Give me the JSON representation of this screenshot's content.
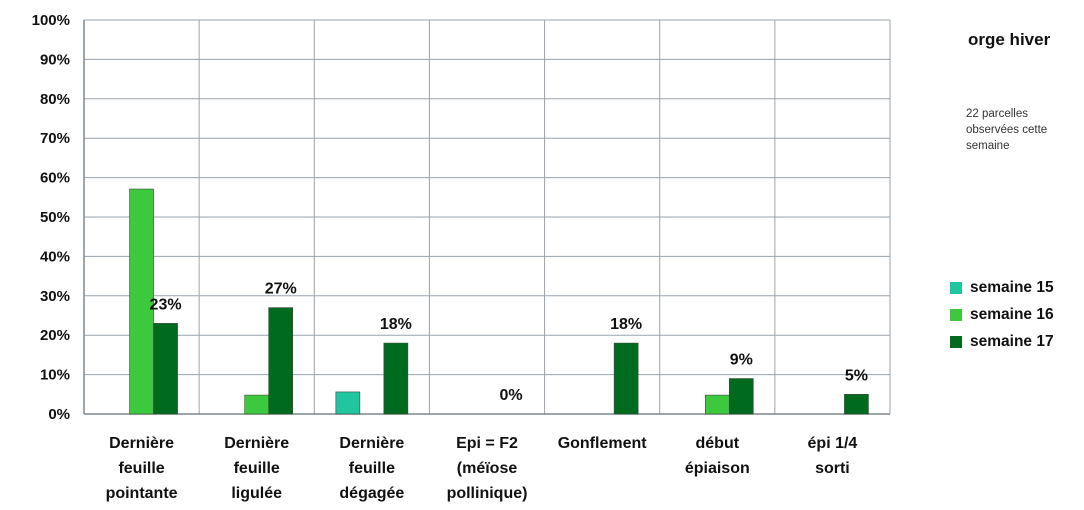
{
  "chart_data": {
    "type": "bar",
    "title": "orge hiver",
    "subtitle": "22 parcelles observées cette semaine",
    "categories": [
      [
        "Dernière",
        "feuille",
        "pointante"
      ],
      [
        "Dernière",
        "feuille",
        "ligulée"
      ],
      [
        "Dernière",
        "feuille",
        "dégagée"
      ],
      [
        "Epi = F2",
        "(méïose",
        "pollinique)"
      ],
      [
        "Gonflement"
      ],
      [
        "début",
        "épiaison"
      ],
      [
        "épi 1/4",
        "sorti"
      ]
    ],
    "series": [
      {
        "name": "semaine 15",
        "color": "#1fc6a0",
        "values": [
          0,
          0,
          5.6,
          0,
          0,
          0,
          0
        ]
      },
      {
        "name": "semaine 16",
        "color": "#3dc93d",
        "values": [
          57.1,
          4.8,
          0,
          0,
          0,
          4.8,
          0
        ]
      },
      {
        "name": "semaine 17",
        "color": "#006a1e",
        "values": [
          23,
          27,
          18,
          0,
          18,
          9,
          5
        ]
      }
    ],
    "data_labels": [
      "23%",
      "27%",
      "18%",
      "0%",
      "18%",
      "9%",
      "5%"
    ],
    "ylim": [
      0,
      100
    ],
    "yticks": [
      "0%",
      "10%",
      "20%",
      "30%",
      "40%",
      "50%",
      "60%",
      "70%",
      "80%",
      "90%",
      "100%"
    ],
    "grid": true,
    "legend_position": "right"
  }
}
